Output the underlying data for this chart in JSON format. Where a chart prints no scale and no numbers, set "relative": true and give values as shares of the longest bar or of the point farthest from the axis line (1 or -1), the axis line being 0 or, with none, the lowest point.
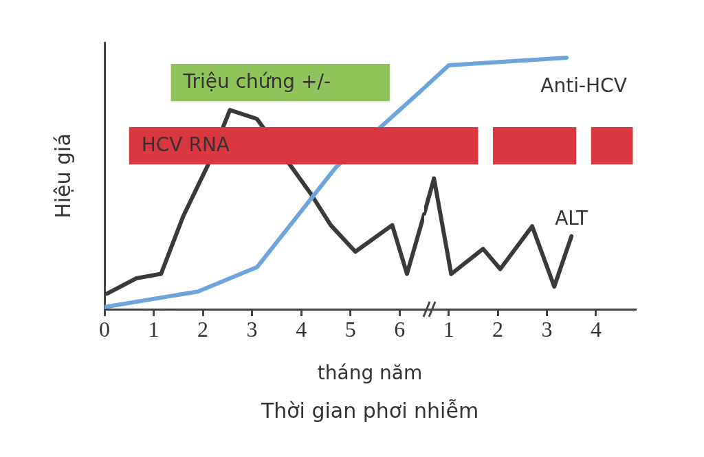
{
  "chart_data": [
    {
      "type": "line",
      "relative": true,
      "xlabel": "tháng năm\nThời gian phơi nhiễm",
      "ylabel": "Hiệu giá",
      "xlim": [
        0,
        6.5
      ],
      "xticks": [
        0,
        1,
        2,
        3,
        4,
        5,
        6
      ],
      "series": [
        {
          "color": "#6ea5dc",
          "x": [
            0,
            1.9,
            3.1,
            4.7,
            6.5
          ],
          "values": [
            0.01,
            0.08,
            0.19,
            0.64,
            1.0
          ]
        },
        {
          "color": "#3a3a3a",
          "x": [
            0.05,
            0.65,
            1.15,
            1.6,
            2.1,
            2.55,
            3.1,
            4.2,
            4.6,
            5.1,
            5.85,
            6.15,
            6.5
          ],
          "values": [
            0.07,
            0.14,
            0.16,
            0.42,
            0.65,
            0.9,
            0.86,
            0.52,
            0.38,
            0.26,
            0.38,
            0.16,
            0.43
          ]
        }
      ],
      "bands": [
        {
          "axis": "x",
          "from": 1.35,
          "to": 5.8,
          "label": "Triệu chứng +/-",
          "color": "#8fc45a"
        },
        {
          "axis": "x",
          "from": 0.5,
          "to": 6.5,
          "label": "HCV RNA",
          "color": "#da3840"
        }
      ]
    },
    {
      "type": "line",
      "relative": true,
      "tick_labels": "x",
      "xlim": [
        0.5,
        4.8
      ],
      "xticks": [
        1,
        2,
        3,
        4
      ],
      "series": [
        {
          "name": "Anti-HCV",
          "color": "#6ea5dc",
          "x": [
            0.5,
            1.0,
            3.4
          ],
          "values": [
            0.88,
            0.97,
            1.0
          ]
        },
        {
          "name": "ALT",
          "color": "#3a3a3a",
          "x": [
            0.5,
            0.7,
            1.05,
            1.7,
            2.05,
            2.7,
            3.15,
            3.5
          ],
          "values": [
            0.38,
            0.52,
            0.14,
            0.24,
            0.16,
            0.33,
            0.09,
            0.29
          ]
        }
      ],
      "bands": [
        {
          "axis": "x",
          "from": 0.5,
          "to": 1.6,
          "color": "#da3840"
        },
        {
          "axis": "x",
          "from": 1.9,
          "to": 3.6,
          "color": "#da3840"
        },
        {
          "axis": "x",
          "from": 3.9,
          "to": 4.75,
          "color": "#da3840"
        }
      ]
    }
  ]
}
